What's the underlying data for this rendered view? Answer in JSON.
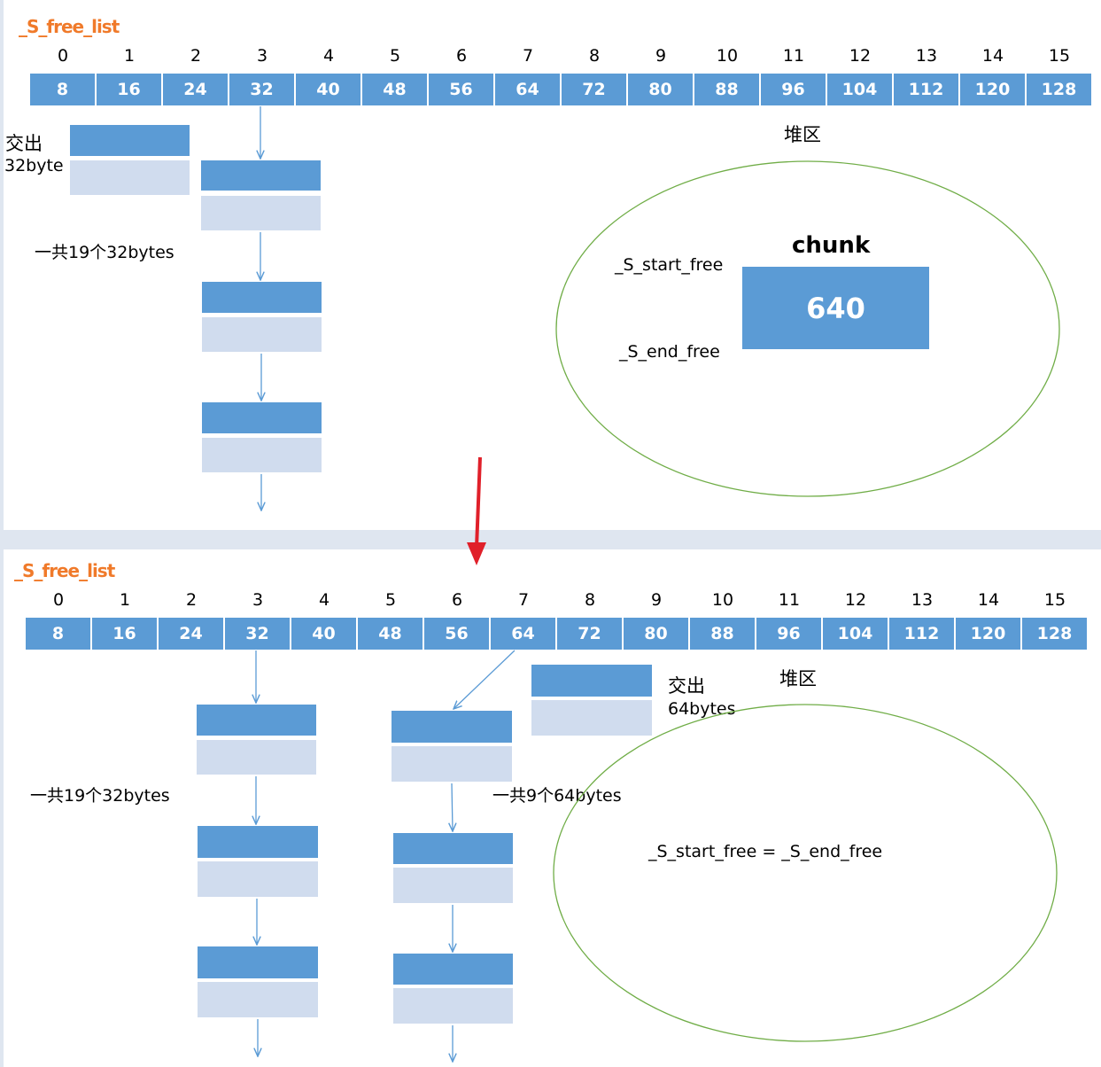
{
  "colors": {
    "block_dark": "#5b9bd5",
    "block_light": "#d0dcee",
    "ellipse": "#70ad47",
    "title": "#f07a2a",
    "transition_arrow": "#e0202a",
    "connector": "#5b9bd5"
  },
  "top": {
    "title": "_S_free_list",
    "indices": [
      "0",
      "1",
      "2",
      "3",
      "4",
      "5",
      "6",
      "7",
      "8",
      "9",
      "10",
      "11",
      "12",
      "13",
      "14",
      "15"
    ],
    "sizes": [
      "8",
      "16",
      "24",
      "32",
      "40",
      "48",
      "56",
      "64",
      "72",
      "80",
      "88",
      "96",
      "104",
      "112",
      "120",
      "128"
    ],
    "handout_label_line1": "交出",
    "handout_label_line2": "32byte",
    "total_label": "一共19个32bytes",
    "heap_label": "堆区",
    "chunk_title": "chunk",
    "chunk_value": "640",
    "start_free_label": "_S_start_free",
    "end_free_label": "_S_end_free"
  },
  "bottom": {
    "title": "_S_free_list",
    "indices": [
      "0",
      "1",
      "2",
      "3",
      "4",
      "5",
      "6",
      "7",
      "8",
      "9",
      "10",
      "11",
      "12",
      "13",
      "14",
      "15"
    ],
    "sizes": [
      "8",
      "16",
      "24",
      "32",
      "40",
      "48",
      "56",
      "64",
      "72",
      "80",
      "88",
      "96",
      "104",
      "112",
      "120",
      "128"
    ],
    "handout_label_line1": "交出",
    "handout_label_line2": "64bytes",
    "total_32_label": "一共19个32bytes",
    "total_64_label": "一共9个64bytes",
    "heap_label": "堆区",
    "equal_label": "_S_start_free = _S_end_free"
  }
}
